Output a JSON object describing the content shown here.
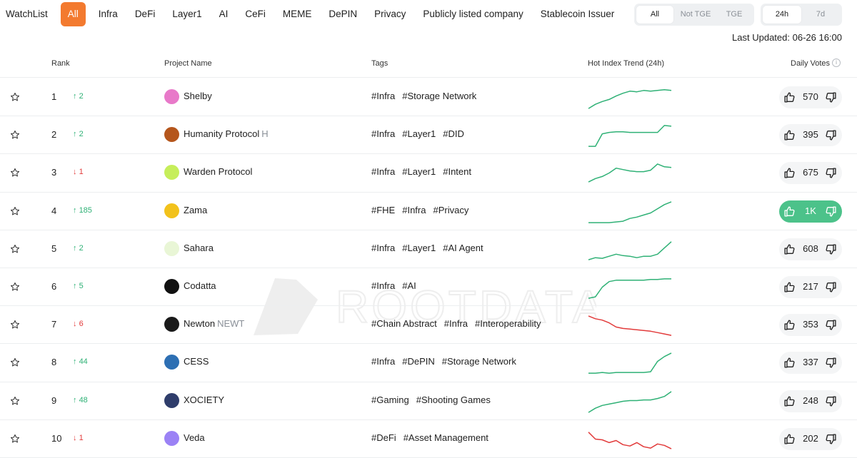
{
  "categories": [
    "WatchList",
    "All",
    "Infra",
    "DeFi",
    "Layer1",
    "AI",
    "CeFi",
    "MEME",
    "DePIN",
    "Privacy",
    "Publicly listed company",
    "Stablecoin Issuer"
  ],
  "active_category": "All",
  "tge_filter": {
    "options": [
      "All",
      "Not TGE",
      "TGE"
    ],
    "selected": "All"
  },
  "time_filter": {
    "options": [
      "24h",
      "7d"
    ],
    "selected": "24h"
  },
  "last_updated": "Last Updated: 06-26 16:00",
  "columns": {
    "rank": "Rank",
    "project": "Project Name",
    "tags": "Tags",
    "trend": "Hot Index Trend (24h)",
    "votes": "Daily Votes"
  },
  "watermark": "ROOTDATA",
  "colors": {
    "accent": "#f37a2f",
    "up": "#2fb176",
    "down": "#e23b3b",
    "hot_vote": "#4cc28a"
  },
  "projects": [
    {
      "rank": "1",
      "change": "2",
      "direction": "up",
      "name": "Shelby",
      "ticker": "",
      "logo_color": "#e879c9",
      "tags": [
        "#Infra",
        "#Storage Network"
      ],
      "votes": "570",
      "hot": false,
      "trend": [
        2,
        8,
        12,
        15,
        20,
        24,
        27,
        26,
        28,
        27,
        28,
        29,
        28
      ]
    },
    {
      "rank": "2",
      "change": "2",
      "direction": "up",
      "name": "Humanity Protocol",
      "ticker": "H",
      "logo_color": "#b5561c",
      "tags": [
        "#Infra",
        "#Layer1",
        "#DID"
      ],
      "votes": "395",
      "hot": false,
      "trend": [
        2,
        2,
        20,
        22,
        23,
        23,
        22,
        22,
        22,
        22,
        22,
        32,
        31
      ]
    },
    {
      "rank": "3",
      "change": "1",
      "direction": "down",
      "name": "Warden Protocol",
      "ticker": "",
      "logo_color": "#c6ee5a",
      "tags": [
        "#Infra",
        "#Layer1",
        "#Intent"
      ],
      "votes": "675",
      "hot": false,
      "trend": [
        5,
        10,
        13,
        18,
        25,
        23,
        21,
        20,
        20,
        22,
        31,
        27,
        26
      ]
    },
    {
      "rank": "4",
      "change": "185",
      "direction": "up",
      "name": "Zama",
      "ticker": "",
      "logo_color": "#f2c21c",
      "tags": [
        "#FHE",
        "#Infra",
        "#Privacy"
      ],
      "votes": "1K",
      "hot": true,
      "trend": [
        2,
        2,
        2,
        2,
        3,
        4,
        8,
        10,
        13,
        16,
        22,
        28,
        32
      ]
    },
    {
      "rank": "5",
      "change": "2",
      "direction": "up",
      "name": "Sahara",
      "ticker": "",
      "logo_color": "#e9f6d6",
      "tags": [
        "#Infra",
        "#Layer1",
        "#AI Agent"
      ],
      "votes": "608",
      "hot": false,
      "trend": [
        3,
        6,
        5,
        8,
        11,
        9,
        8,
        6,
        8,
        8,
        11,
        20,
        29
      ]
    },
    {
      "rank": "6",
      "change": "5",
      "direction": "up",
      "name": "Codatta",
      "ticker": "",
      "logo_color": "#111111",
      "tags": [
        "#Infra",
        "#AI"
      ],
      "votes": "217",
      "hot": false,
      "trend": [
        2,
        4,
        18,
        26,
        28,
        28,
        28,
        28,
        28,
        29,
        29,
        30,
        30
      ]
    },
    {
      "rank": "7",
      "change": "6",
      "direction": "down",
      "name": "Newton",
      "ticker": "NEWT",
      "logo_color": "#1a1a1a",
      "tags": [
        "#Chain Abstract",
        "#Infra",
        "#Interoperability"
      ],
      "votes": "353",
      "hot": false,
      "trend": [
        31,
        27,
        25,
        21,
        15,
        13,
        12,
        11,
        10,
        9,
        7,
        5,
        3
      ]
    },
    {
      "rank": "8",
      "change": "44",
      "direction": "up",
      "name": "CESS",
      "ticker": "",
      "logo_color": "#2d6fb3",
      "tags": [
        "#Infra",
        "#DePIN",
        "#Storage Network"
      ],
      "votes": "337",
      "hot": false,
      "trend": [
        3,
        3,
        4,
        3,
        4,
        4,
        4,
        4,
        4,
        5,
        20,
        27,
        32
      ]
    },
    {
      "rank": "9",
      "change": "48",
      "direction": "up",
      "name": "XOCIETY",
      "ticker": "",
      "logo_color": "#2f3d6b",
      "tags": [
        "#Gaming",
        "#Shooting Games"
      ],
      "votes": "248",
      "hot": false,
      "trend": [
        2,
        8,
        12,
        14,
        16,
        18,
        19,
        19,
        20,
        20,
        22,
        25,
        32
      ]
    },
    {
      "rank": "10",
      "change": "1",
      "direction": "down",
      "name": "Veda",
      "ticker": "",
      "logo_color": "#9b82f5",
      "tags": [
        "#DeFi",
        "#Asset Management"
      ],
      "votes": "202",
      "hot": false,
      "trend": [
        28,
        18,
        17,
        13,
        16,
        10,
        8,
        13,
        7,
        5,
        11,
        9,
        4
      ]
    }
  ]
}
